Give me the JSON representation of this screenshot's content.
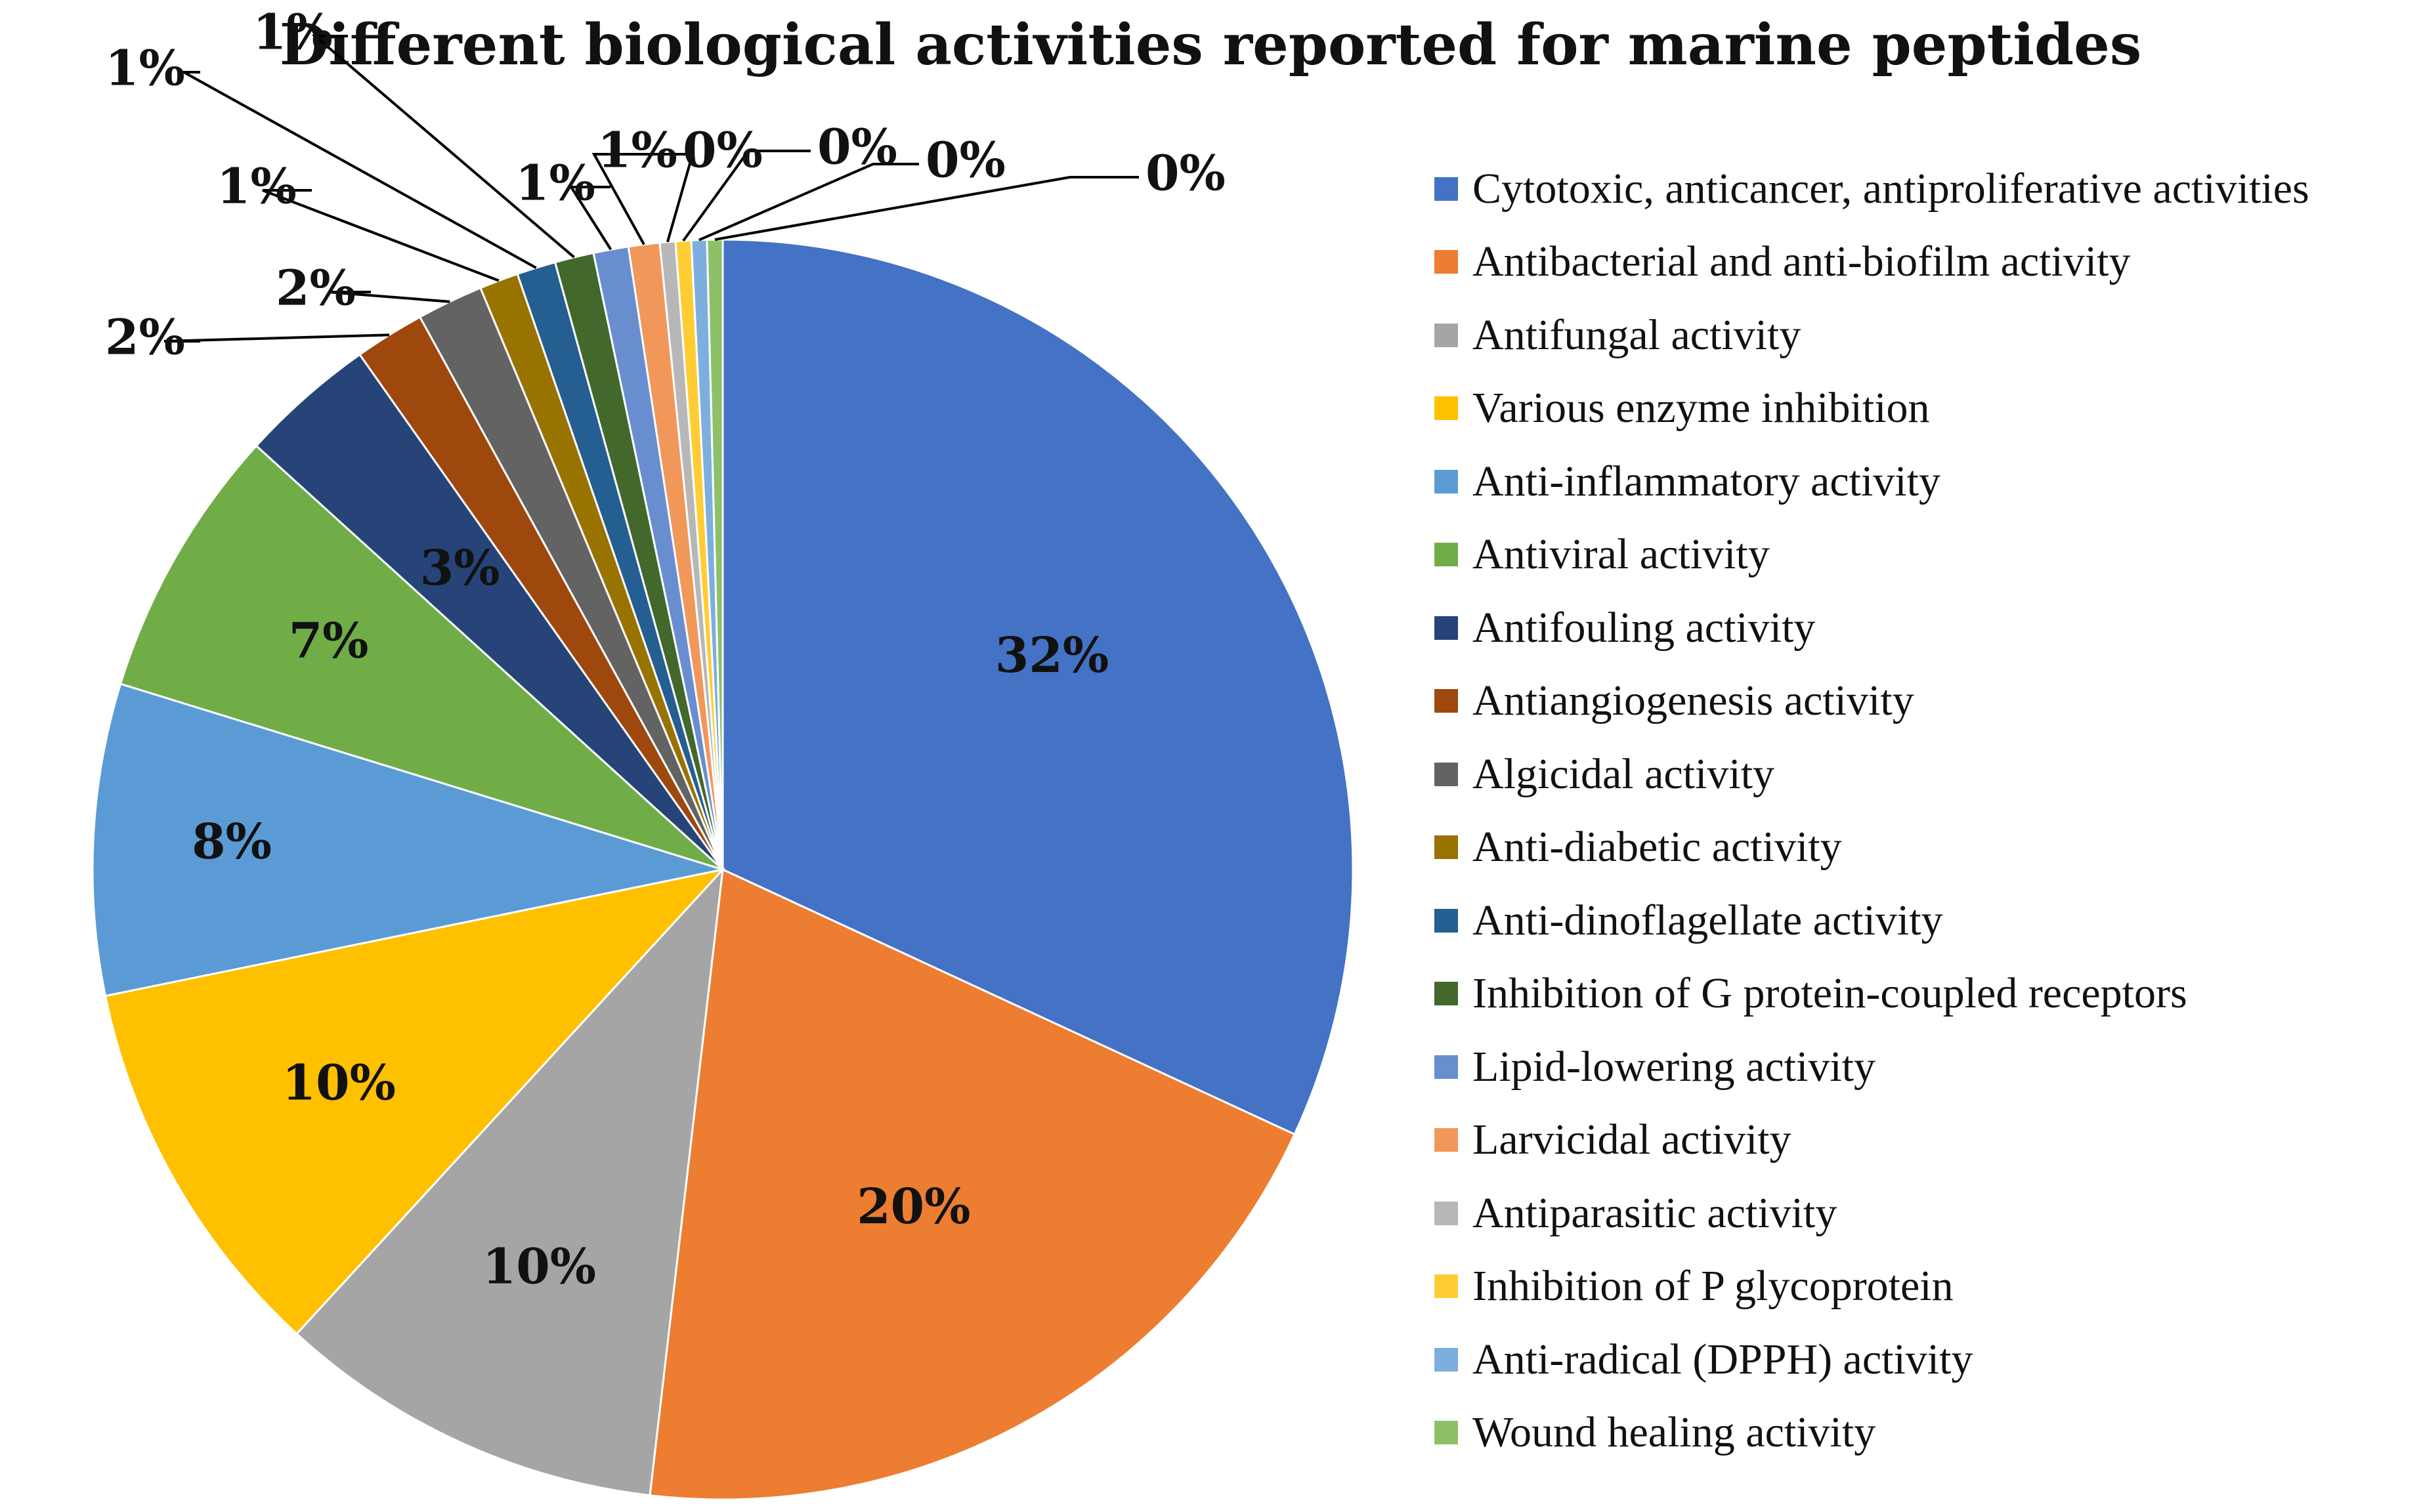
{
  "chart_data": {
    "type": "pie",
    "title": "Different biological activities reported for marine peptides",
    "slices": [
      {
        "name": "Cytotoxic, anticancer, antiproliferative activities",
        "value": 32,
        "label": "32%",
        "color": "#4472C4"
      },
      {
        "name": "Antibacterial and anti-biofilm activity",
        "value": 20,
        "label": "20%",
        "color": "#ED7D31"
      },
      {
        "name": "Antifungal activity",
        "value": 10,
        "label": "10%",
        "color": "#A5A5A5"
      },
      {
        "name": "Various enzyme inhibition",
        "value": 10,
        "label": "10%",
        "color": "#FFC000"
      },
      {
        "name": "Anti-inflammatory activity",
        "value": 8,
        "label": "8%",
        "color": "#5B9BD5"
      },
      {
        "name": "Antiviral activity",
        "value": 7,
        "label": "7%",
        "color": "#70AD47"
      },
      {
        "name": "Antifouling activity",
        "value": 3.5,
        "label": "3%",
        "color": "#264478"
      },
      {
        "name": "Antiangiogenesis activity",
        "value": 1.8,
        "label": "2%",
        "color": "#9E480E"
      },
      {
        "name": "Algicidal activity",
        "value": 1.7,
        "label": "2%",
        "color": "#636363"
      },
      {
        "name": "Anti-diabetic activity",
        "value": 1.0,
        "label": "1%",
        "color": "#997300"
      },
      {
        "name": "Anti-dinoflagellate activity",
        "value": 1.0,
        "label": "1%",
        "color": "#255E91"
      },
      {
        "name": "Inhibition of G protein-coupled receptors",
        "value": 1.0,
        "label": "1%",
        "color": "#43682B"
      },
      {
        "name": "Lipid-lowering activity",
        "value": 0.9,
        "label": "1%",
        "color": "#698ED0"
      },
      {
        "name": "Larvicidal activity",
        "value": 0.8,
        "label": "1%",
        "color": "#F1975A"
      },
      {
        "name": "Antiparasitic activity",
        "value": 0.4,
        "label": "0%",
        "color": "#B7B7B7"
      },
      {
        "name": "Inhibition of P glycoprotein",
        "value": 0.4,
        "label": "0%",
        "color": "#FFCD33"
      },
      {
        "name": "Anti-radical (DPPH) activity",
        "value": 0.4,
        "label": "0%",
        "color": "#7CAFDD"
      },
      {
        "name": "Wound healing activity",
        "value": 0.4,
        "label": "0%",
        "color": "#8CC168"
      }
    ],
    "legend_position": "right",
    "start_angle": "12 o'clock",
    "direction": "clockwise"
  }
}
